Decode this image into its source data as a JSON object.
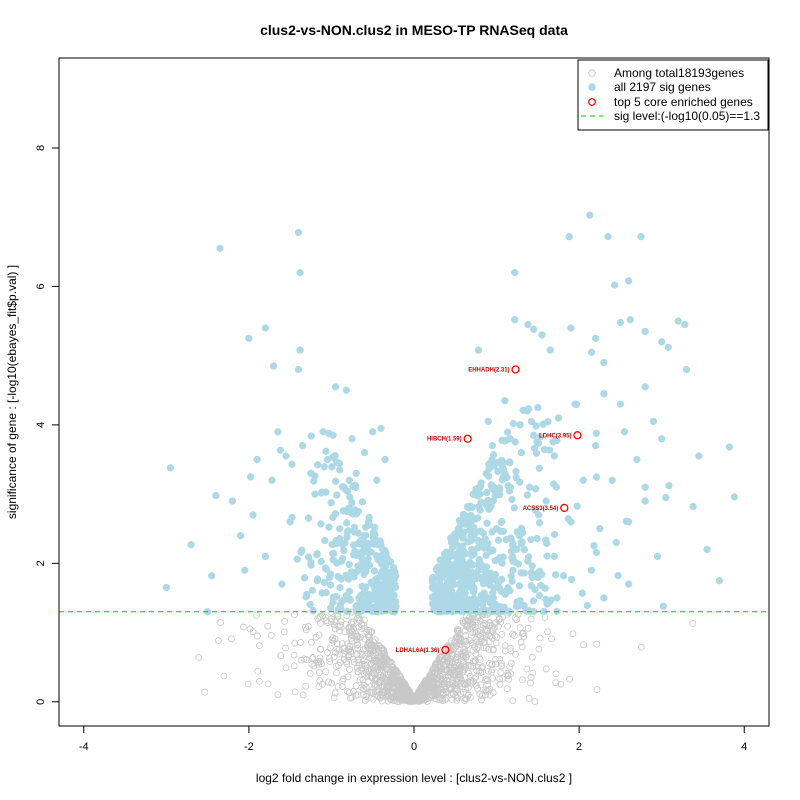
{
  "chart_data": {
    "type": "scatter",
    "title": "clus2-vs-NON.clus2 in MESO-TP RNASeq data",
    "xlabel": "log2 fold change in expression level : [clus2-vs-NON.clus2 ]",
    "ylabel": "significance of gene : [-log10(ebayes_fit$p.val) ]",
    "xlim": [
      -4.3,
      4.3
    ],
    "ylim": [
      -0.35,
      9.3
    ],
    "xticks": [
      -4,
      -2,
      0,
      2,
      4
    ],
    "yticks": [
      0,
      2,
      4,
      6,
      8
    ],
    "sig_level": 1.3,
    "colors": {
      "all": "#c8c8c8",
      "sig": "#add8e6",
      "top": "#ff0000",
      "sig_line": "#00cc00"
    },
    "legend": {
      "position": "top-right",
      "entries": [
        "Among total18193genes",
        "all 2197 sig genes",
        "top 5 core enriched genes",
        "sig level:(-log10(0.05)==1.3"
      ]
    },
    "top_genes": [
      {
        "label": "EHHADH(2.31)",
        "x": 1.23,
        "y": 4.8
      },
      {
        "label": "HIBCH(1.59)",
        "x": 0.65,
        "y": 3.8
      },
      {
        "label": "LDHC(3.95)",
        "x": 1.98,
        "y": 3.85
      },
      {
        "label": "ACSS3(3.54)",
        "x": 1.82,
        "y": 2.8
      },
      {
        "label": "LDHAL6A(1.36)",
        "x": 0.38,
        "y": 0.75
      }
    ],
    "sig_points": [
      [
        -2.35,
        6.55
      ],
      [
        -1.4,
        6.78
      ],
      [
        -1.38,
        6.2
      ],
      [
        -2.0,
        5.25
      ],
      [
        -1.8,
        5.4
      ],
      [
        -1.7,
        4.85
      ],
      [
        -1.38,
        5.08
      ],
      [
        -1.4,
        4.8
      ],
      [
        -0.95,
        4.55
      ],
      [
        -0.82,
        4.5
      ],
      [
        -2.95,
        3.38
      ],
      [
        -3.0,
        1.65
      ],
      [
        -2.7,
        2.27
      ],
      [
        -2.45,
        1.82
      ],
      [
        -2.4,
        2.98
      ],
      [
        -2.1,
        2.4
      ],
      [
        -1.98,
        3.25
      ],
      [
        -1.95,
        2.7
      ],
      [
        -1.9,
        3.5
      ],
      [
        -1.72,
        3.2
      ],
      [
        -1.65,
        3.9
      ],
      [
        -1.55,
        3.55
      ],
      [
        -1.35,
        3.7
      ],
      [
        -1.25,
        3.3
      ],
      [
        -1.2,
        3.0
      ],
      [
        -1.1,
        3.9
      ],
      [
        -1.05,
        3.5
      ],
      [
        -0.98,
        3.85
      ],
      [
        -0.9,
        3.35
      ],
      [
        -0.85,
        3.1
      ],
      [
        -0.75,
        3.8
      ],
      [
        -0.7,
        3.3
      ],
      [
        -0.6,
        3.6
      ],
      [
        -0.5,
        3.9
      ],
      [
        -0.45,
        3.2
      ],
      [
        -0.4,
        3.95
      ],
      [
        -0.35,
        3.5
      ],
      [
        -0.9,
        2.5
      ],
      [
        -0.6,
        2.4
      ],
      [
        -1.5,
        2.6
      ],
      [
        -1.8,
        2.1
      ],
      [
        -2.2,
        2.9
      ],
      [
        -2.05,
        1.9
      ],
      [
        -1.6,
        1.7
      ],
      [
        -1.3,
        1.55
      ],
      [
        -2.5,
        1.3
      ],
      [
        2.13,
        7.03
      ],
      [
        1.88,
        6.72
      ],
      [
        2.35,
        6.72
      ],
      [
        2.75,
        6.72
      ],
      [
        1.22,
        6.2
      ],
      [
        2.43,
        6.02
      ],
      [
        2.6,
        6.08
      ],
      [
        1.22,
        5.52
      ],
      [
        1.38,
        5.45
      ],
      [
        1.45,
        5.38
      ],
      [
        1.55,
        5.3
      ],
      [
        1.9,
        5.4
      ],
      [
        2.2,
        5.25
      ],
      [
        2.5,
        5.48
      ],
      [
        2.62,
        5.52
      ],
      [
        2.8,
        5.35
      ],
      [
        3.2,
        5.5
      ],
      [
        3.28,
        5.45
      ],
      [
        0.78,
        5.08
      ],
      [
        1.65,
        5.08
      ],
      [
        2.15,
        5.05
      ],
      [
        2.3,
        4.9
      ],
      [
        3.0,
        5.2
      ],
      [
        3.08,
        5.12
      ],
      [
        3.3,
        4.8
      ],
      [
        2.8,
        4.55
      ],
      [
        2.5,
        4.3
      ],
      [
        2.3,
        4.45
      ],
      [
        2.9,
        4.05
      ],
      [
        3.0,
        3.8
      ],
      [
        3.45,
        3.55
      ],
      [
        3.05,
        2.95
      ],
      [
        3.38,
        2.82
      ],
      [
        3.55,
        2.2
      ],
      [
        3.7,
        1.75
      ],
      [
        3.82,
        3.68
      ],
      [
        3.88,
        2.96
      ],
      [
        2.95,
        2.1
      ],
      [
        2.6,
        1.7
      ],
      [
        2.25,
        2.5
      ],
      [
        2.05,
        3.2
      ],
      [
        2.15,
        1.9
      ],
      [
        0.9,
        4.05
      ],
      [
        1.1,
        4.35
      ],
      [
        1.5,
        4.25
      ],
      [
        1.75,
        4.1
      ],
      [
        0.95,
        3.7
      ],
      [
        1.3,
        3.6
      ],
      [
        1.45,
        3.85
      ],
      [
        1.7,
        3.55
      ],
      [
        1.1,
        3.3
      ],
      [
        1.4,
        3.1
      ],
      [
        0.8,
        3.0
      ],
      [
        1.6,
        2.9
      ],
      [
        1.9,
        2.6
      ],
      [
        0.6,
        2.7
      ],
      [
        1.0,
        2.5
      ],
      [
        1.3,
        2.3
      ],
      [
        1.7,
        2.1
      ],
      [
        2.4,
        3.2
      ],
      [
        2.6,
        2.6
      ],
      [
        2.7,
        3.5
      ],
      [
        2.2,
        3.7
      ],
      [
        1.95,
        4.3
      ],
      [
        2.8,
        3.1
      ],
      [
        2.45,
        2.3
      ],
      [
        0.7,
        2.2
      ],
      [
        0.5,
        2.35
      ],
      [
        1.2,
        1.9
      ],
      [
        2.3,
        1.5
      ],
      [
        2.8,
        2.9
      ],
      [
        2.55,
        3.9
      ],
      [
        3.02,
        1.38
      ]
    ]
  }
}
